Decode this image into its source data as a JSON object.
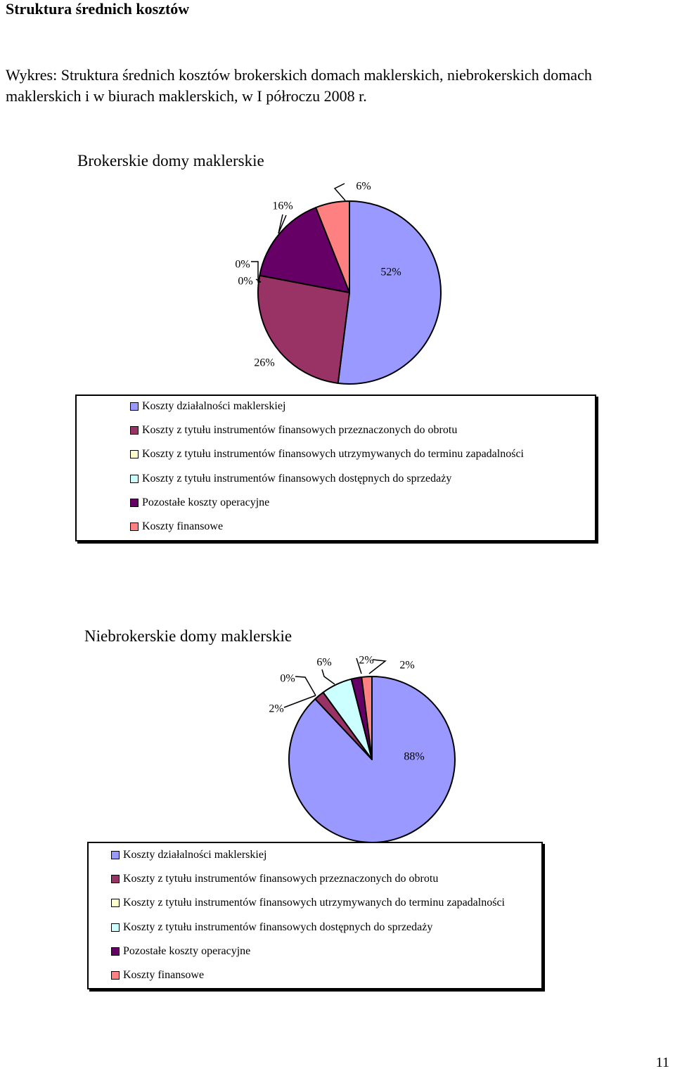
{
  "page": {
    "heading": "Struktura  średnich kosztów",
    "caption": "Wykres:  Struktura średnich kosztów brokerskich domach maklerskich, niebrokerskich domach maklerskich i w biurach maklerskich, w I półroczu 2008 r.",
    "page_number": "11"
  },
  "legend_labels": [
    "Koszty działalności maklerskiej",
    "Koszty z tytułu instrumentów finansowych przeznaczonych do obrotu",
    "Koszty z tytułu instrumentów finansowych utrzymywanych do terminu zapadalności",
    "Koszty z tytułu instrumentów finansowych dostępnych do sprzedaży",
    "Pozostałe koszty operacyjne",
    "Koszty finansowe"
  ],
  "colors": [
    "#9999ff",
    "#993366",
    "#ffffcc",
    "#ccffff",
    "#660066",
    "#ff8080"
  ],
  "chart_data": [
    {
      "type": "pie",
      "title": "Brokerskie domy maklerskie",
      "categories": [
        "Koszty działalności maklerskiej",
        "Koszty z tytułu instrumentów finansowych przeznaczonych do obrotu",
        "Koszty z tytułu instrumentów finansowych utrzymywanych do terminu zapadalności",
        "Koszty z tytułu instrumentów finansowych dostępnych do sprzedaży",
        "Pozostałe koszty operacyjne",
        "Koszty finansowe"
      ],
      "values": [
        52,
        26,
        0,
        0,
        16,
        6
      ],
      "labels": [
        "52%",
        "26%",
        "0%",
        "0%",
        "16%",
        "6%"
      ],
      "legend_position": "bottom"
    },
    {
      "type": "pie",
      "title": "Niebrokerskie domy maklerskie",
      "categories": [
        "Koszty działalności maklerskiej",
        "Koszty z tytułu instrumentów finansowych przeznaczonych do obrotu",
        "Koszty z tytułu instrumentów finansowych utrzymywanych do terminu zapadalności",
        "Koszty z tytułu instrumentów finansowych dostępnych do sprzedaży",
        "Pozostałe koszty operacyjne",
        "Koszty finansowe"
      ],
      "values": [
        88,
        2,
        0,
        6,
        2,
        2
      ],
      "labels": [
        "88%",
        "2%",
        "0%",
        "6%",
        "2%",
        "2%"
      ],
      "legend_position": "bottom"
    }
  ]
}
